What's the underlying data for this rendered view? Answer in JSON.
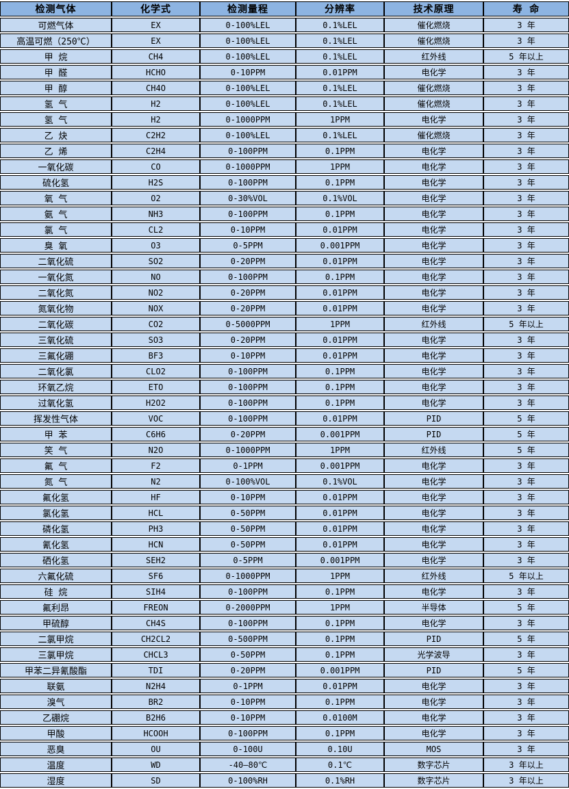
{
  "colors": {
    "header_bg": "#8DB4E2",
    "row_bg": "#C5D9F1",
    "border": "#000000",
    "row_gap": "#FFFFFF",
    "text": "#000000"
  },
  "table": {
    "columns": [
      "检测气体",
      "化学式",
      "检测量程",
      "分辨率",
      "技术原理",
      "寿 命"
    ],
    "column_keys": [
      "gas-name",
      "formula",
      "range",
      "resolution",
      "principle",
      "lifespan"
    ],
    "rows": [
      [
        "可燃气体",
        "EX",
        "0-100%LEL",
        "0.1%LEL",
        "催化燃烧",
        "3 年"
      ],
      [
        "高温可燃（250℃）",
        "EX",
        "0-100%LEL",
        "0.1%LEL",
        "催化燃烧",
        "3 年"
      ],
      [
        "甲 烷",
        "CH4",
        "0-100%LEL",
        "0.1%LEL",
        "红外线",
        "5 年以上"
      ],
      [
        "甲 醛",
        "HCHO",
        "0-10PPM",
        "0.01PPM",
        "电化学",
        "3 年"
      ],
      [
        "甲 醇",
        "CH4O",
        "0-100%LEL",
        "0.1%LEL",
        "催化燃烧",
        "3 年"
      ],
      [
        "氢 气",
        "H2",
        "0-100%LEL",
        "0.1%LEL",
        "催化燃烧",
        "3 年"
      ],
      [
        "氢 气",
        "H2",
        "0-1000PPM",
        "1PPM",
        "电化学",
        "3 年"
      ],
      [
        "乙 炔",
        "C2H2",
        "0-100%LEL",
        "0.1%LEL",
        "催化燃烧",
        "3 年"
      ],
      [
        "乙 烯",
        "C2H4",
        "0-100PPM",
        "0.1PPM",
        "电化学",
        "3 年"
      ],
      [
        "一氧化碳",
        "CO",
        "0-1000PPM",
        "1PPM",
        "电化学",
        "3 年"
      ],
      [
        "硫化氢",
        "H2S",
        "0-100PPM",
        "0.1PPM",
        "电化学",
        "3 年"
      ],
      [
        "氧 气",
        "O2",
        "0-30%VOL",
        "0.1%VOL",
        "电化学",
        "3 年"
      ],
      [
        "氨 气",
        "NH3",
        "0-100PPM",
        "0.1PPM",
        "电化学",
        "3 年"
      ],
      [
        "氯 气",
        "CL2",
        "0-10PPM",
        "0.01PPM",
        "电化学",
        "3 年"
      ],
      [
        "臭 氧",
        "O3",
        "0-5PPM",
        "0.001PPM",
        "电化学",
        "3 年"
      ],
      [
        "二氧化硫",
        "SO2",
        "0-20PPM",
        "0.01PPM",
        "电化学",
        "3 年"
      ],
      [
        "一氧化氮",
        "NO",
        "0-100PPM",
        "0.1PPM",
        "电化学",
        "3 年"
      ],
      [
        "二氧化氮",
        "NO2",
        "0-20PPM",
        "0.01PPM",
        "电化学",
        "3 年"
      ],
      [
        "氮氧化物",
        "NOX",
        "0-20PPM",
        "0.01PPM",
        "电化学",
        "3 年"
      ],
      [
        "二氧化碳",
        "CO2",
        "0-5000PPM",
        "1PPM",
        "红外线",
        "5 年以上"
      ],
      [
        "三氧化硫",
        "SO3",
        "0-20PPM",
        "0.01PPM",
        "电化学",
        "3 年"
      ],
      [
        "三氟化硼",
        "BF3",
        "0-10PPM",
        "0.01PPM",
        "电化学",
        "3 年"
      ],
      [
        "二氧化氯",
        "CLO2",
        "0-100PPM",
        "0.1PPM",
        "电化学",
        "3 年"
      ],
      [
        "环氧乙烷",
        "ETO",
        "0-100PPM",
        "0.1PPM",
        "电化学",
        "3 年"
      ],
      [
        "过氧化氢",
        "H2O2",
        "0-100PPM",
        "0.1PPM",
        "电化学",
        "3 年"
      ],
      [
        "挥发性气体",
        "VOC",
        "0-100PPM",
        "0.01PPM",
        "PID",
        "5 年"
      ],
      [
        "甲 苯",
        "C6H6",
        "0-20PPM",
        "0.001PPM",
        "PID",
        "5 年"
      ],
      [
        "笑 气",
        "N2O",
        "0-1000PPM",
        "1PPM",
        "红外线",
        "5 年"
      ],
      [
        "氟 气",
        "F2",
        "0-1PPM",
        "0.001PPM",
        "电化学",
        "3 年"
      ],
      [
        "氮 气",
        "N2",
        "0-100%VOL",
        "0.1%VOL",
        "电化学",
        "3 年"
      ],
      [
        "氟化氢",
        "HF",
        "0-10PPM",
        "0.01PPM",
        "电化学",
        "3 年"
      ],
      [
        "氯化氢",
        "HCL",
        "0-50PPM",
        "0.01PPM",
        "电化学",
        "3 年"
      ],
      [
        "磷化氢",
        "PH3",
        "0-50PPM",
        "0.01PPM",
        "电化学",
        "3 年"
      ],
      [
        "氰化氢",
        "HCN",
        "0-50PPM",
        "0.01PPM",
        "电化学",
        "3 年"
      ],
      [
        "硒化氢",
        "SEH2",
        "0-5PPM",
        "0.001PPM",
        "电化学",
        "3 年"
      ],
      [
        "六氟化硫",
        "SF6",
        "0-1000PPM",
        "1PPM",
        "红外线",
        "5 年以上"
      ],
      [
        "硅 烷",
        "SIH4",
        "0-100PPM",
        "0.1PPM",
        "电化学",
        "3 年"
      ],
      [
        "氟利昂",
        "FREON",
        "0-2000PPM",
        "1PPM",
        "半导体",
        "5 年"
      ],
      [
        "甲硫醇",
        "CH4S",
        "0-100PPM",
        "0.1PPM",
        "电化学",
        "3 年"
      ],
      [
        "二氯甲烷",
        "CH2CL2",
        "0-500PPM",
        "0.1PPM",
        "PID",
        "5 年"
      ],
      [
        "三氯甲烷",
        "CHCL3",
        "0-50PPM",
        "0.1PPM",
        "光学波导",
        "3 年"
      ],
      [
        "甲苯二异氰酸酯",
        "TDI",
        "0-20PPM",
        "0.001PPM",
        "PID",
        "5 年"
      ],
      [
        "联氨",
        "N2H4",
        "0-1PPM",
        "0.01PPM",
        "电化学",
        "3 年"
      ],
      [
        "溴气",
        "BR2",
        "0-10PPM",
        "0.1PPM",
        "电化学",
        "3 年"
      ],
      [
        "乙硼烷",
        "B2H6",
        "0-10PPM",
        "0.0100M",
        "电化学",
        "3 年"
      ],
      [
        "甲酸",
        "HCOOH",
        "0-100PPM",
        "0.1PPM",
        "电化学",
        "3 年"
      ],
      [
        "恶臭",
        "OU",
        "0-100U",
        "0.10U",
        "MOS",
        "3 年"
      ],
      [
        "温度",
        "WD",
        "-40—80℃",
        "0.1℃",
        "数字芯片",
        "3 年以上"
      ],
      [
        "湿度",
        "SD",
        "0-100%RH",
        "0.1%RH",
        "数字芯片",
        "3 年以上"
      ]
    ]
  }
}
